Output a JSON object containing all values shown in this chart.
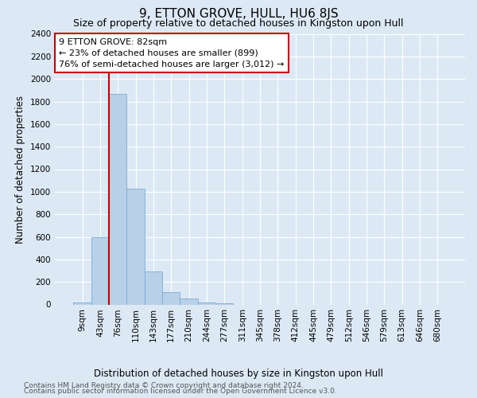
{
  "title": "9, ETTON GROVE, HULL, HU6 8JS",
  "subtitle": "Size of property relative to detached houses in Kingston upon Hull",
  "xlabel_bottom": "Distribution of detached houses by size in Kingston upon Hull",
  "ylabel": "Number of detached properties",
  "footer_line1": "Contains HM Land Registry data © Crown copyright and database right 2024.",
  "footer_line2": "Contains public sector information licensed under the Open Government Licence v3.0.",
  "categories": [
    "9sqm",
    "43sqm",
    "76sqm",
    "110sqm",
    "143sqm",
    "177sqm",
    "210sqm",
    "244sqm",
    "277sqm",
    "311sqm",
    "345sqm",
    "378sqm",
    "412sqm",
    "445sqm",
    "479sqm",
    "512sqm",
    "546sqm",
    "579sqm",
    "613sqm",
    "646sqm",
    "680sqm"
  ],
  "values": [
    15,
    600,
    1870,
    1030,
    290,
    110,
    50,
    20,
    10,
    0,
    0,
    0,
    0,
    0,
    0,
    0,
    0,
    0,
    0,
    0,
    0
  ],
  "bar_color": "#b8d0e8",
  "bar_edge_color": "#7aadd4",
  "vline_x": 2,
  "vline_color": "#cc0000",
  "annotation_text": "9 ETTON GROVE: 82sqm\n← 23% of detached houses are smaller (899)\n76% of semi-detached houses are larger (3,012) →",
  "annotation_box_color": "#ffffff",
  "annotation_box_edge": "#cc0000",
  "ylim": [
    0,
    2400
  ],
  "yticks": [
    0,
    200,
    400,
    600,
    800,
    1000,
    1200,
    1400,
    1600,
    1800,
    2000,
    2200,
    2400
  ],
  "background_color": "#dce9f5",
  "plot_bg_color": "#dce9f5",
  "grid_color": "#ffffff",
  "title_fontsize": 11,
  "subtitle_fontsize": 9,
  "axis_label_fontsize": 8.5,
  "tick_fontsize": 7.5,
  "annotation_fontsize": 8,
  "footer_fontsize": 6.5
}
